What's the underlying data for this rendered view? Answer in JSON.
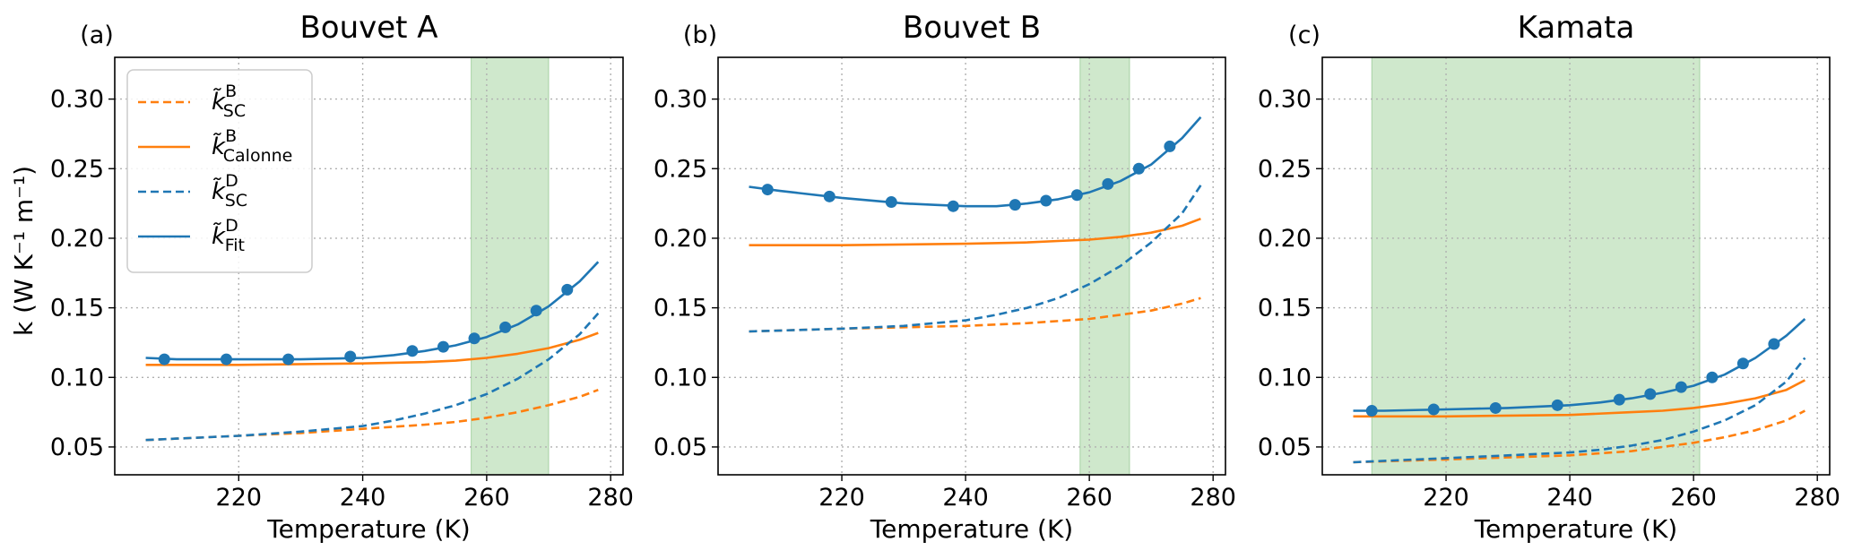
{
  "figure": {
    "ylabel": "k (W K⁻¹ m⁻¹)",
    "colors": {
      "B": "#ff7f0e",
      "D": "#1f77b4",
      "band": "#a8d5a2"
    }
  },
  "legend": {
    "placement": "upper-left of panel (a)",
    "entries": [
      {
        "base": "k̃",
        "sup": "B",
        "sub": "SC",
        "style": "dashed",
        "color_key": "B"
      },
      {
        "base": "k̃",
        "sup": "B",
        "sub": "Calonne",
        "style": "solid",
        "color_key": "B"
      },
      {
        "base": "k̃",
        "sup": "D",
        "sub": "SC",
        "style": "dashed",
        "color_key": "D"
      },
      {
        "base": "k̃",
        "sup": "D",
        "sub": "Fit",
        "style": "solid",
        "color_key": "D",
        "marker": "circle"
      }
    ]
  },
  "chart_data": [
    {
      "type": "line",
      "tag": "(a)",
      "title": "Bouvet A",
      "xlabel": "Temperature (K)",
      "ylabel": "k (W K⁻¹ m⁻¹)",
      "xlim": [
        200,
        282
      ],
      "ylim": [
        0.03,
        0.33
      ],
      "xticks": [
        220,
        240,
        260,
        280
      ],
      "yticks": [
        0.05,
        0.1,
        0.15,
        0.2,
        0.25,
        0.3
      ],
      "grid": true,
      "shaded_band": [
        257.5,
        270
      ],
      "series": [
        {
          "key": "B_SC",
          "style": "dashed",
          "color_key": "B",
          "x": [
            205,
            210,
            220,
            230,
            240,
            250,
            255,
            260,
            265,
            270,
            275,
            278
          ],
          "y": [
            0.055,
            0.056,
            0.058,
            0.06,
            0.063,
            0.066,
            0.068,
            0.071,
            0.075,
            0.08,
            0.086,
            0.091
          ]
        },
        {
          "key": "B_Calonne",
          "style": "solid",
          "color_key": "B",
          "x": [
            205,
            220,
            240,
            250,
            255,
            260,
            265,
            270,
            275,
            278
          ],
          "y": [
            0.109,
            0.109,
            0.11,
            0.111,
            0.112,
            0.114,
            0.117,
            0.121,
            0.127,
            0.132
          ]
        },
        {
          "key": "D_SC",
          "style": "dashed",
          "color_key": "D",
          "x": [
            205,
            210,
            220,
            230,
            240,
            245,
            250,
            255,
            260,
            265,
            270,
            275,
            278
          ],
          "y": [
            0.055,
            0.056,
            0.058,
            0.061,
            0.065,
            0.069,
            0.074,
            0.08,
            0.088,
            0.099,
            0.113,
            0.131,
            0.146
          ]
        },
        {
          "key": "D_Fit",
          "style": "solid",
          "color_key": "D",
          "x": [
            205,
            210,
            220,
            230,
            240,
            245,
            250,
            255,
            260,
            265,
            270,
            275,
            278
          ],
          "y": [
            0.114,
            0.113,
            0.113,
            0.113,
            0.114,
            0.116,
            0.119,
            0.123,
            0.129,
            0.138,
            0.151,
            0.169,
            0.183
          ]
        },
        {
          "key": "D_Fit_points",
          "style": "markers",
          "color_key": "D",
          "x": [
            208,
            218,
            228,
            238,
            248,
            253,
            258,
            263,
            268,
            273
          ],
          "y": [
            0.113,
            0.113,
            0.113,
            0.115,
            0.119,
            0.122,
            0.128,
            0.136,
            0.148,
            0.163
          ]
        }
      ]
    },
    {
      "type": "line",
      "tag": "(b)",
      "title": "Bouvet B",
      "xlabel": "Temperature (K)",
      "xlim": [
        200,
        282
      ],
      "ylim": [
        0.03,
        0.33
      ],
      "xticks": [
        220,
        240,
        260,
        280
      ],
      "yticks": [
        0.05,
        0.1,
        0.15,
        0.2,
        0.25,
        0.3
      ],
      "grid": true,
      "shaded_band": [
        258.5,
        266.5
      ],
      "series": [
        {
          "key": "B_SC",
          "style": "dashed",
          "color_key": "B",
          "x": [
            205,
            220,
            240,
            250,
            260,
            265,
            270,
            275,
            278
          ],
          "y": [
            0.133,
            0.135,
            0.137,
            0.139,
            0.142,
            0.145,
            0.148,
            0.153,
            0.157
          ]
        },
        {
          "key": "B_Calonne",
          "style": "solid",
          "color_key": "B",
          "x": [
            205,
            220,
            240,
            250,
            255,
            260,
            265,
            270,
            275,
            278
          ],
          "y": [
            0.195,
            0.195,
            0.196,
            0.197,
            0.198,
            0.199,
            0.201,
            0.204,
            0.209,
            0.214
          ]
        },
        {
          "key": "D_SC",
          "style": "dashed",
          "color_key": "D",
          "x": [
            205,
            220,
            230,
            240,
            245,
            250,
            255,
            260,
            265,
            270,
            275,
            278
          ],
          "y": [
            0.133,
            0.135,
            0.137,
            0.141,
            0.145,
            0.15,
            0.157,
            0.167,
            0.18,
            0.197,
            0.218,
            0.238
          ]
        },
        {
          "key": "D_Fit",
          "style": "solid",
          "color_key": "D",
          "x": [
            205,
            210,
            220,
            230,
            235,
            240,
            245,
            250,
            255,
            260,
            265,
            270,
            275,
            278
          ],
          "y": [
            0.237,
            0.234,
            0.229,
            0.225,
            0.224,
            0.223,
            0.223,
            0.225,
            0.228,
            0.233,
            0.241,
            0.253,
            0.272,
            0.287
          ]
        },
        {
          "key": "D_Fit_points",
          "style": "markers",
          "color_key": "D",
          "x": [
            208,
            218,
            228,
            238,
            248,
            253,
            258,
            263,
            268,
            273
          ],
          "y": [
            0.235,
            0.23,
            0.226,
            0.223,
            0.224,
            0.227,
            0.231,
            0.239,
            0.25,
            0.266
          ]
        }
      ]
    },
    {
      "type": "line",
      "tag": "(c)",
      "title": "Kamata",
      "xlabel": "Temperature (K)",
      "xlim": [
        200,
        282
      ],
      "ylim": [
        0.03,
        0.33
      ],
      "xticks": [
        220,
        240,
        260,
        280
      ],
      "yticks": [
        0.05,
        0.1,
        0.15,
        0.2,
        0.25,
        0.3
      ],
      "grid": true,
      "shaded_band": [
        208,
        261
      ],
      "series": [
        {
          "key": "B_SC",
          "style": "dashed",
          "color_key": "B",
          "x": [
            205,
            220,
            240,
            250,
            255,
            260,
            265,
            270,
            275,
            278
          ],
          "y": [
            0.039,
            0.041,
            0.044,
            0.047,
            0.05,
            0.053,
            0.057,
            0.062,
            0.069,
            0.076
          ]
        },
        {
          "key": "B_Calonne",
          "style": "solid",
          "color_key": "B",
          "x": [
            205,
            220,
            240,
            250,
            255,
            260,
            265,
            270,
            275,
            278
          ],
          "y": [
            0.072,
            0.072,
            0.073,
            0.075,
            0.076,
            0.078,
            0.081,
            0.085,
            0.091,
            0.098
          ]
        },
        {
          "key": "D_SC",
          "style": "dashed",
          "color_key": "D",
          "x": [
            205,
            220,
            230,
            240,
            245,
            250,
            255,
            260,
            265,
            270,
            275,
            278
          ],
          "y": [
            0.039,
            0.042,
            0.044,
            0.046,
            0.048,
            0.051,
            0.055,
            0.061,
            0.069,
            0.08,
            0.097,
            0.114
          ]
        },
        {
          "key": "D_Fit",
          "style": "solid",
          "color_key": "D",
          "x": [
            205,
            210,
            220,
            230,
            240,
            245,
            250,
            255,
            260,
            265,
            270,
            275,
            278
          ],
          "y": [
            0.076,
            0.076,
            0.077,
            0.078,
            0.08,
            0.082,
            0.085,
            0.089,
            0.094,
            0.102,
            0.114,
            0.13,
            0.142
          ]
        },
        {
          "key": "D_Fit_points",
          "style": "markers",
          "color_key": "D",
          "x": [
            208,
            218,
            228,
            238,
            248,
            253,
            258,
            263,
            268,
            273
          ],
          "y": [
            0.076,
            0.077,
            0.078,
            0.08,
            0.084,
            0.088,
            0.093,
            0.1,
            0.11,
            0.124
          ]
        }
      ]
    }
  ]
}
